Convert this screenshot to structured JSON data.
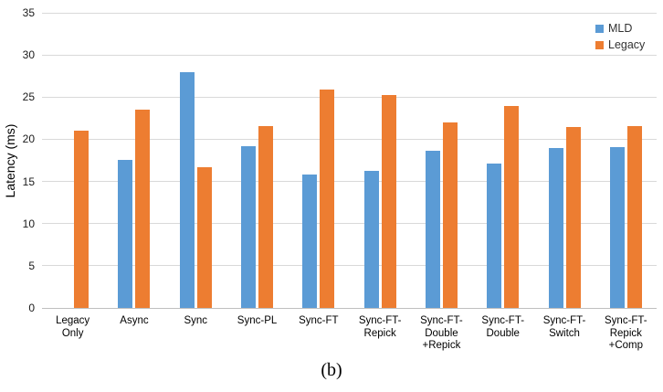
{
  "figure": {
    "caption": "(b)"
  },
  "chart_data": {
    "type": "bar",
    "title": "",
    "xlabel": "",
    "ylabel": "Latency (ms)",
    "ylim": [
      0,
      35
    ],
    "yticks": [
      0,
      5,
      10,
      15,
      20,
      25,
      30,
      35
    ],
    "grid": true,
    "legend_position": "top-right",
    "categories": [
      "Legacy Only",
      "Async",
      "Sync",
      "Sync-PL",
      "Sync-FT",
      "Sync-FT-Repick",
      "Sync-FT-Double+Repick",
      "Sync-FT-Double",
      "Sync-FT-Switch",
      "Sync-FT-Repick+Comp"
    ],
    "category_label_lines": [
      [
        "Legacy",
        "Only"
      ],
      [
        "Async"
      ],
      [
        "Sync"
      ],
      [
        "Sync-PL"
      ],
      [
        "Sync-FT"
      ],
      [
        "Sync-FT-",
        "Repick"
      ],
      [
        "Sync-FT-",
        "Double",
        "+Repick"
      ],
      [
        "Sync-FT-",
        "Double"
      ],
      [
        "Sync-FT-",
        "Switch"
      ],
      [
        "Sync-FT-",
        "Repick",
        "+Comp"
      ]
    ],
    "series": [
      {
        "name": "MLD",
        "color": "#5B9BD5",
        "values": [
          null,
          17.6,
          28.0,
          19.2,
          15.8,
          16.3,
          18.6,
          17.1,
          19.0,
          19.1
        ]
      },
      {
        "name": "Legacy",
        "color": "#ED7D31",
        "values": [
          21.0,
          23.5,
          16.7,
          21.6,
          25.9,
          25.2,
          22.0,
          24.0,
          21.5,
          21.6
        ]
      }
    ],
    "colors": {
      "gridline": "#d9d9d9",
      "axis_line": "#bfbfbf"
    }
  }
}
